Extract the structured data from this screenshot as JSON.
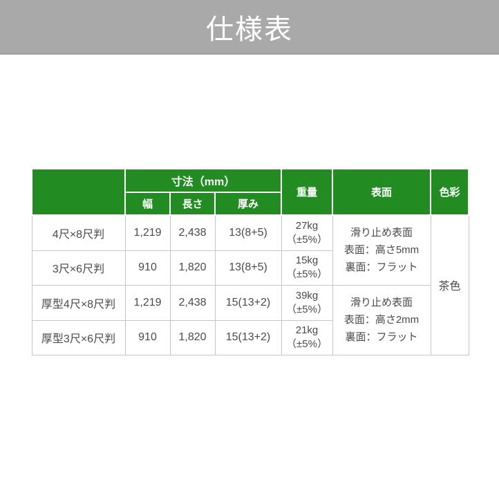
{
  "banner": {
    "title": "仕様表"
  },
  "colors": {
    "banner_bg": "#a9a9a9",
    "header_green": "#228b22",
    "header_text": "#ffffff",
    "body_text": "#4a4a4a",
    "body_border": "#c6c6c6",
    "header_body_divider": "#bcd9bc",
    "page_bg": "#ffffff"
  },
  "table": {
    "headers": {
      "dimension_group": "寸法（mm）",
      "width": "幅",
      "length": "長さ",
      "thickness": "厚み",
      "weight": "重量",
      "surface": "表面",
      "color": "色彩"
    },
    "rows": [
      {
        "name": "4尺×8尺判",
        "width": "1,219",
        "length": "2,438",
        "thickness": "13(8+5)",
        "weight_line1": "27kg",
        "weight_line2": "（±5%）"
      },
      {
        "name": "3尺×6尺判",
        "width": "910",
        "length": "1,820",
        "thickness": "13(8+5)",
        "weight_line1": "15kg",
        "weight_line2": "（±5%）"
      },
      {
        "name": "厚型4尺×8尺判",
        "width": "1,219",
        "length": "2,438",
        "thickness": "15(13+2)",
        "weight_line1": "39kg",
        "weight_line2": "（±5%）"
      },
      {
        "name": "厚型3尺×6尺判",
        "width": "910",
        "length": "1,820",
        "thickness": "15(13+2)",
        "weight_line1": "21kg",
        "weight_line2": "（±5%）"
      }
    ],
    "surface_specs": [
      {
        "line1": "滑り止め表面",
        "line2": "表面：高さ5mm",
        "line3": "裏面：フラット"
      },
      {
        "line1": "滑り止め表面",
        "line2": "表面：高さ2mm",
        "line3": "裏面：フラット"
      }
    ],
    "color_value": "茶色"
  }
}
